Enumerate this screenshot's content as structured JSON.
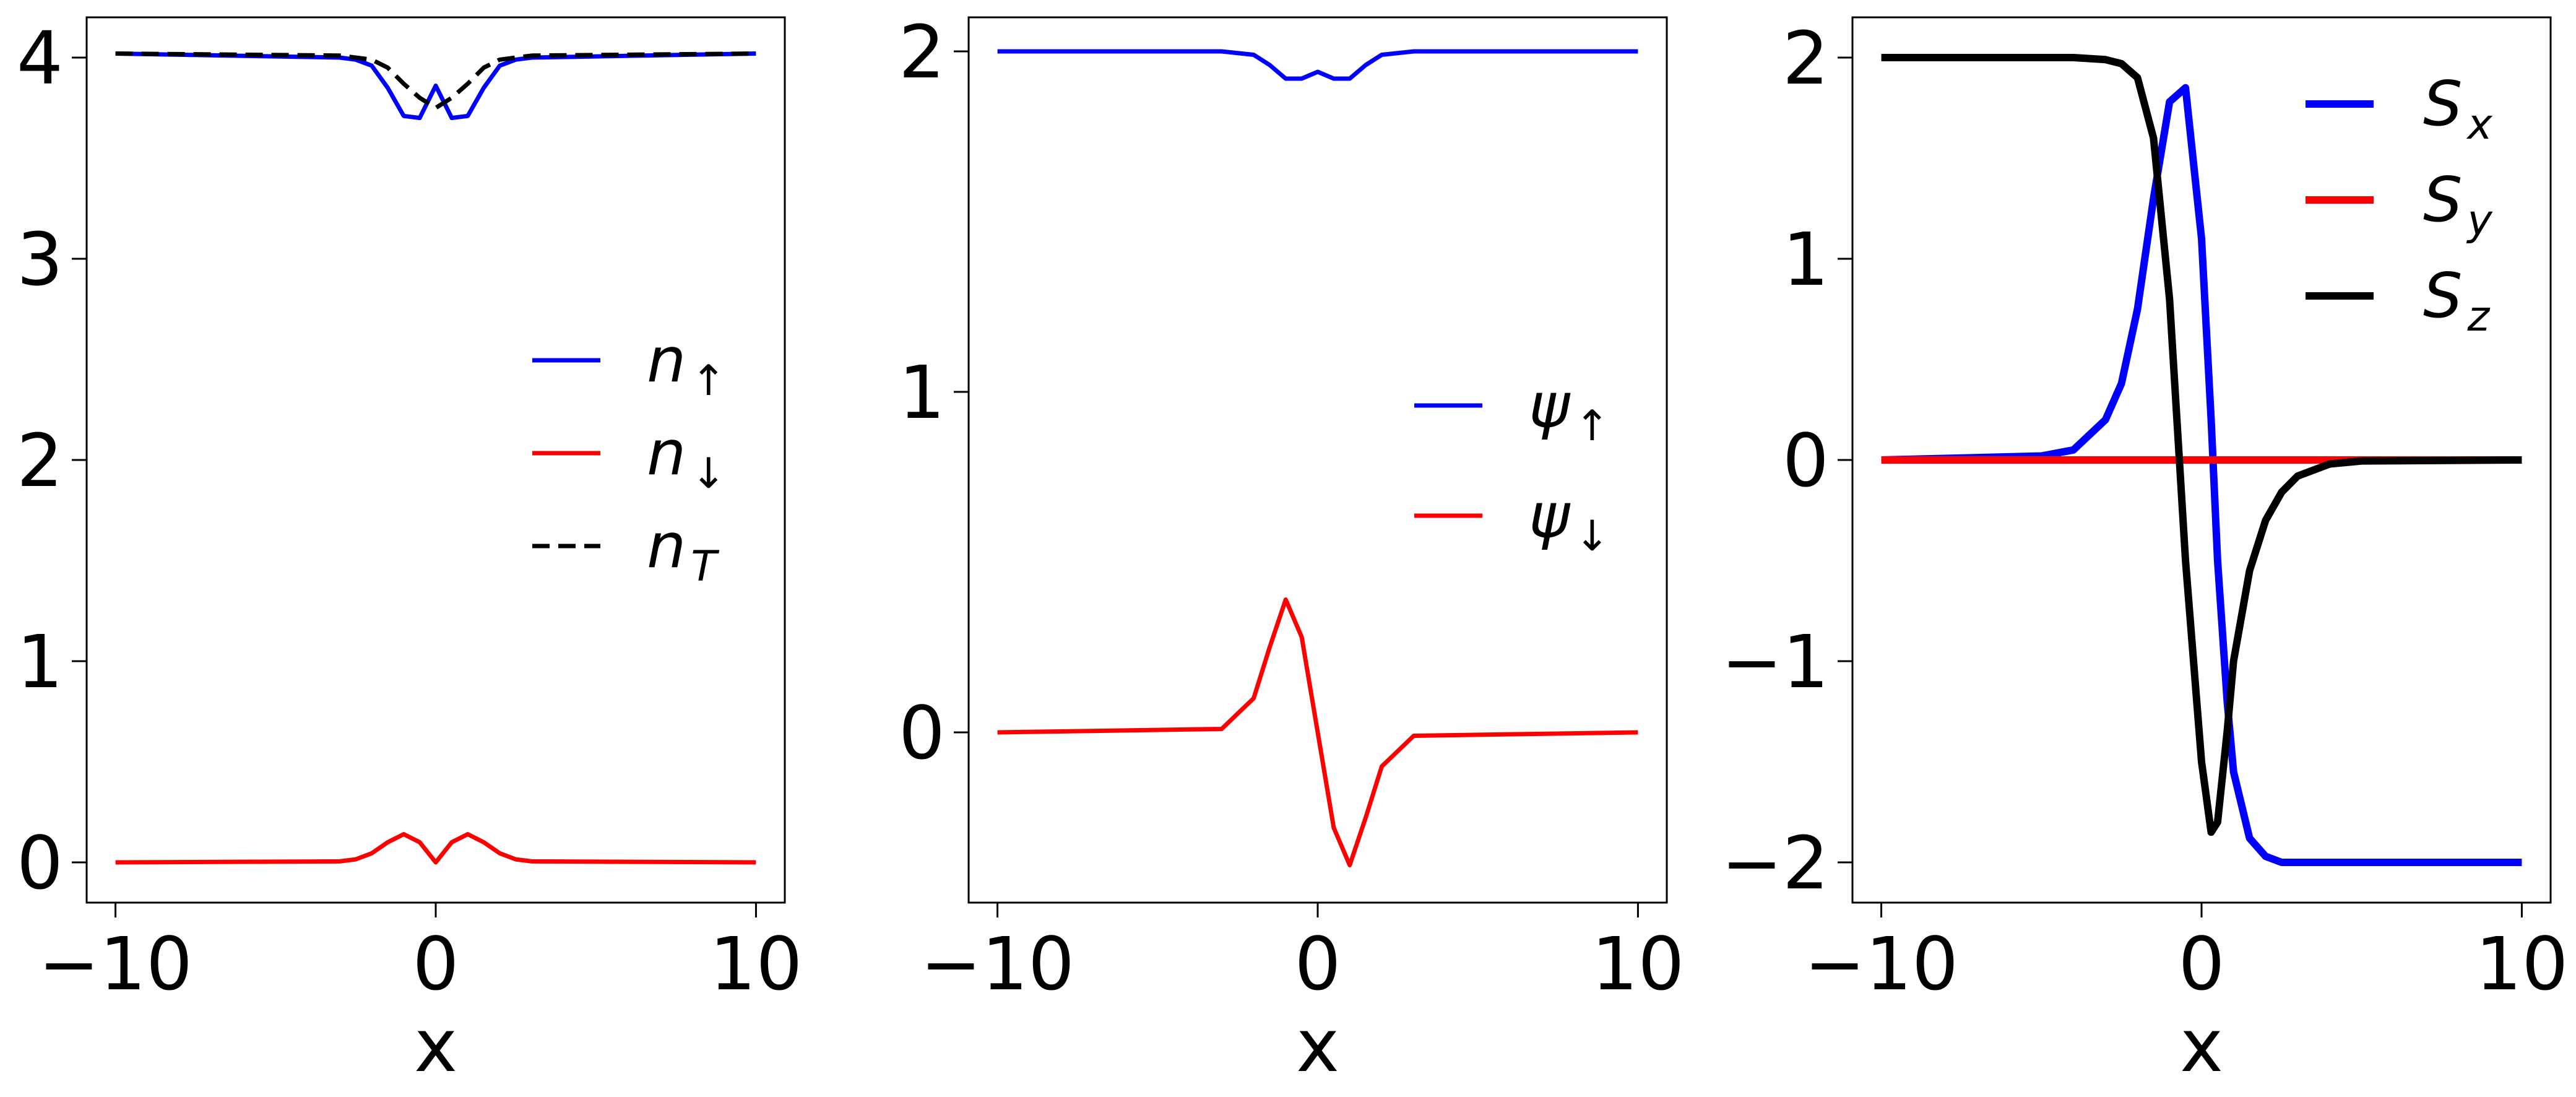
{
  "chart_data": [
    {
      "type": "line",
      "xlabel": "x",
      "ylabel": "",
      "xlim": [
        -10.9,
        10.9
      ],
      "ylim": [
        -0.2,
        4.2
      ],
      "xticks": [
        -10,
        0,
        10
      ],
      "xtick_labels": [
        "−10",
        "0",
        "10"
      ],
      "yticks": [
        0,
        1,
        2,
        3,
        4
      ],
      "ytick_labels": [
        "0",
        "1",
        "2",
        "3",
        "4"
      ],
      "grid": false,
      "legend_position": "center-right",
      "x": [
        -10,
        -3,
        -2.5,
        -2,
        -1.5,
        -1,
        -0.5,
        0,
        0.5,
        1,
        1.5,
        2,
        2.5,
        3,
        10
      ],
      "series": [
        {
          "name": "n",
          "subscript": "↑",
          "color": "#0000ff",
          "dash": "solid",
          "values": [
            4.02,
            4.0,
            3.99,
            3.96,
            3.85,
            3.71,
            3.7,
            3.86,
            3.7,
            3.71,
            3.85,
            3.96,
            3.99,
            4.0,
            4.02
          ]
        },
        {
          "name": "n",
          "subscript": "↓",
          "color": "#ff0000",
          "dash": "solid",
          "values": [
            0,
            0.005,
            0.015,
            0.045,
            0.1,
            0.14,
            0.1,
            0.0,
            0.1,
            0.14,
            0.1,
            0.045,
            0.015,
            0.005,
            0
          ]
        },
        {
          "name": "n",
          "subscript": "T",
          "color": "#000000",
          "dash": "dashed",
          "values": [
            4.02,
            4.01,
            4.0,
            3.99,
            3.95,
            3.87,
            3.8,
            3.75,
            3.8,
            3.87,
            3.95,
            3.99,
            4.0,
            4.01,
            4.02
          ]
        }
      ]
    },
    {
      "type": "line",
      "xlabel": "x",
      "ylabel": "",
      "xlim": [
        -10.9,
        10.9
      ],
      "ylim": [
        -0.5,
        2.1
      ],
      "xticks": [
        -10,
        0,
        10
      ],
      "xtick_labels": [
        "−10",
        "0",
        "10"
      ],
      "yticks": [
        0,
        1,
        2
      ],
      "ytick_labels": [
        "0",
        "1",
        "2"
      ],
      "grid": false,
      "legend_position": "center-right",
      "x": [
        -10,
        -3,
        -2,
        -1.5,
        -1,
        -0.5,
        0,
        0.5,
        1,
        1.5,
        2,
        3,
        10
      ],
      "series": [
        {
          "name": "ψ",
          "subscript": "↑",
          "color": "#0000ff",
          "dash": "solid",
          "values": [
            2.0,
            2.0,
            1.99,
            1.96,
            1.92,
            1.92,
            1.94,
            1.92,
            1.92,
            1.96,
            1.99,
            2.0,
            2.0
          ]
        },
        {
          "name": "ψ",
          "subscript": "↓",
          "color": "#ff0000",
          "dash": "solid",
          "values": [
            0,
            0.01,
            0.1,
            0.25,
            0.39,
            0.28,
            0,
            -0.28,
            -0.39,
            -0.25,
            -0.1,
            -0.01,
            0
          ]
        }
      ]
    },
    {
      "type": "line",
      "xlabel": "x",
      "ylabel": "",
      "xlim": [
        -10.9,
        10.9
      ],
      "ylim": [
        -2.2,
        2.2
      ],
      "xticks": [
        -10,
        0,
        10
      ],
      "xtick_labels": [
        "−10",
        "0",
        "10"
      ],
      "yticks": [
        -2,
        -1,
        0,
        1,
        2
      ],
      "ytick_labels": [
        "−2",
        "−1",
        "0",
        "1",
        "2"
      ],
      "grid": false,
      "legend_position": "top-right",
      "x": [
        -10,
        -5,
        -4,
        -3,
        -2.5,
        -2,
        -1.5,
        -1,
        -0.5,
        0,
        0.3,
        0.5,
        0.8,
        1,
        1.5,
        2,
        2.5,
        3,
        4,
        5,
        10
      ],
      "series": [
        {
          "name": "S",
          "subscript": "x",
          "color": "#0000ff",
          "dash": "solid",
          "values": [
            0,
            0.02,
            0.05,
            0.2,
            0.38,
            0.75,
            1.3,
            1.78,
            1.85,
            1.1,
            0.2,
            -0.5,
            -1.2,
            -1.55,
            -1.88,
            -1.97,
            -2.0,
            -2.0,
            -2.0,
            -2.0,
            -2.0
          ]
        },
        {
          "name": "S",
          "subscript": "y",
          "color": "#ff0000",
          "dash": "solid",
          "values": [
            0,
            0,
            0,
            0,
            0,
            0,
            0,
            0,
            0,
            0,
            0,
            0,
            0,
            0,
            0,
            0,
            0,
            0,
            0,
            0,
            0
          ]
        },
        {
          "name": "S",
          "subscript": "z",
          "color": "#000000",
          "dash": "solid",
          "values": [
            2.0,
            2.0,
            2.0,
            1.99,
            1.97,
            1.9,
            1.6,
            0.8,
            -0.5,
            -1.5,
            -1.85,
            -1.8,
            -1.35,
            -1.0,
            -0.55,
            -0.3,
            -0.16,
            -0.08,
            -0.02,
            -0.005,
            0
          ]
        }
      ]
    }
  ]
}
